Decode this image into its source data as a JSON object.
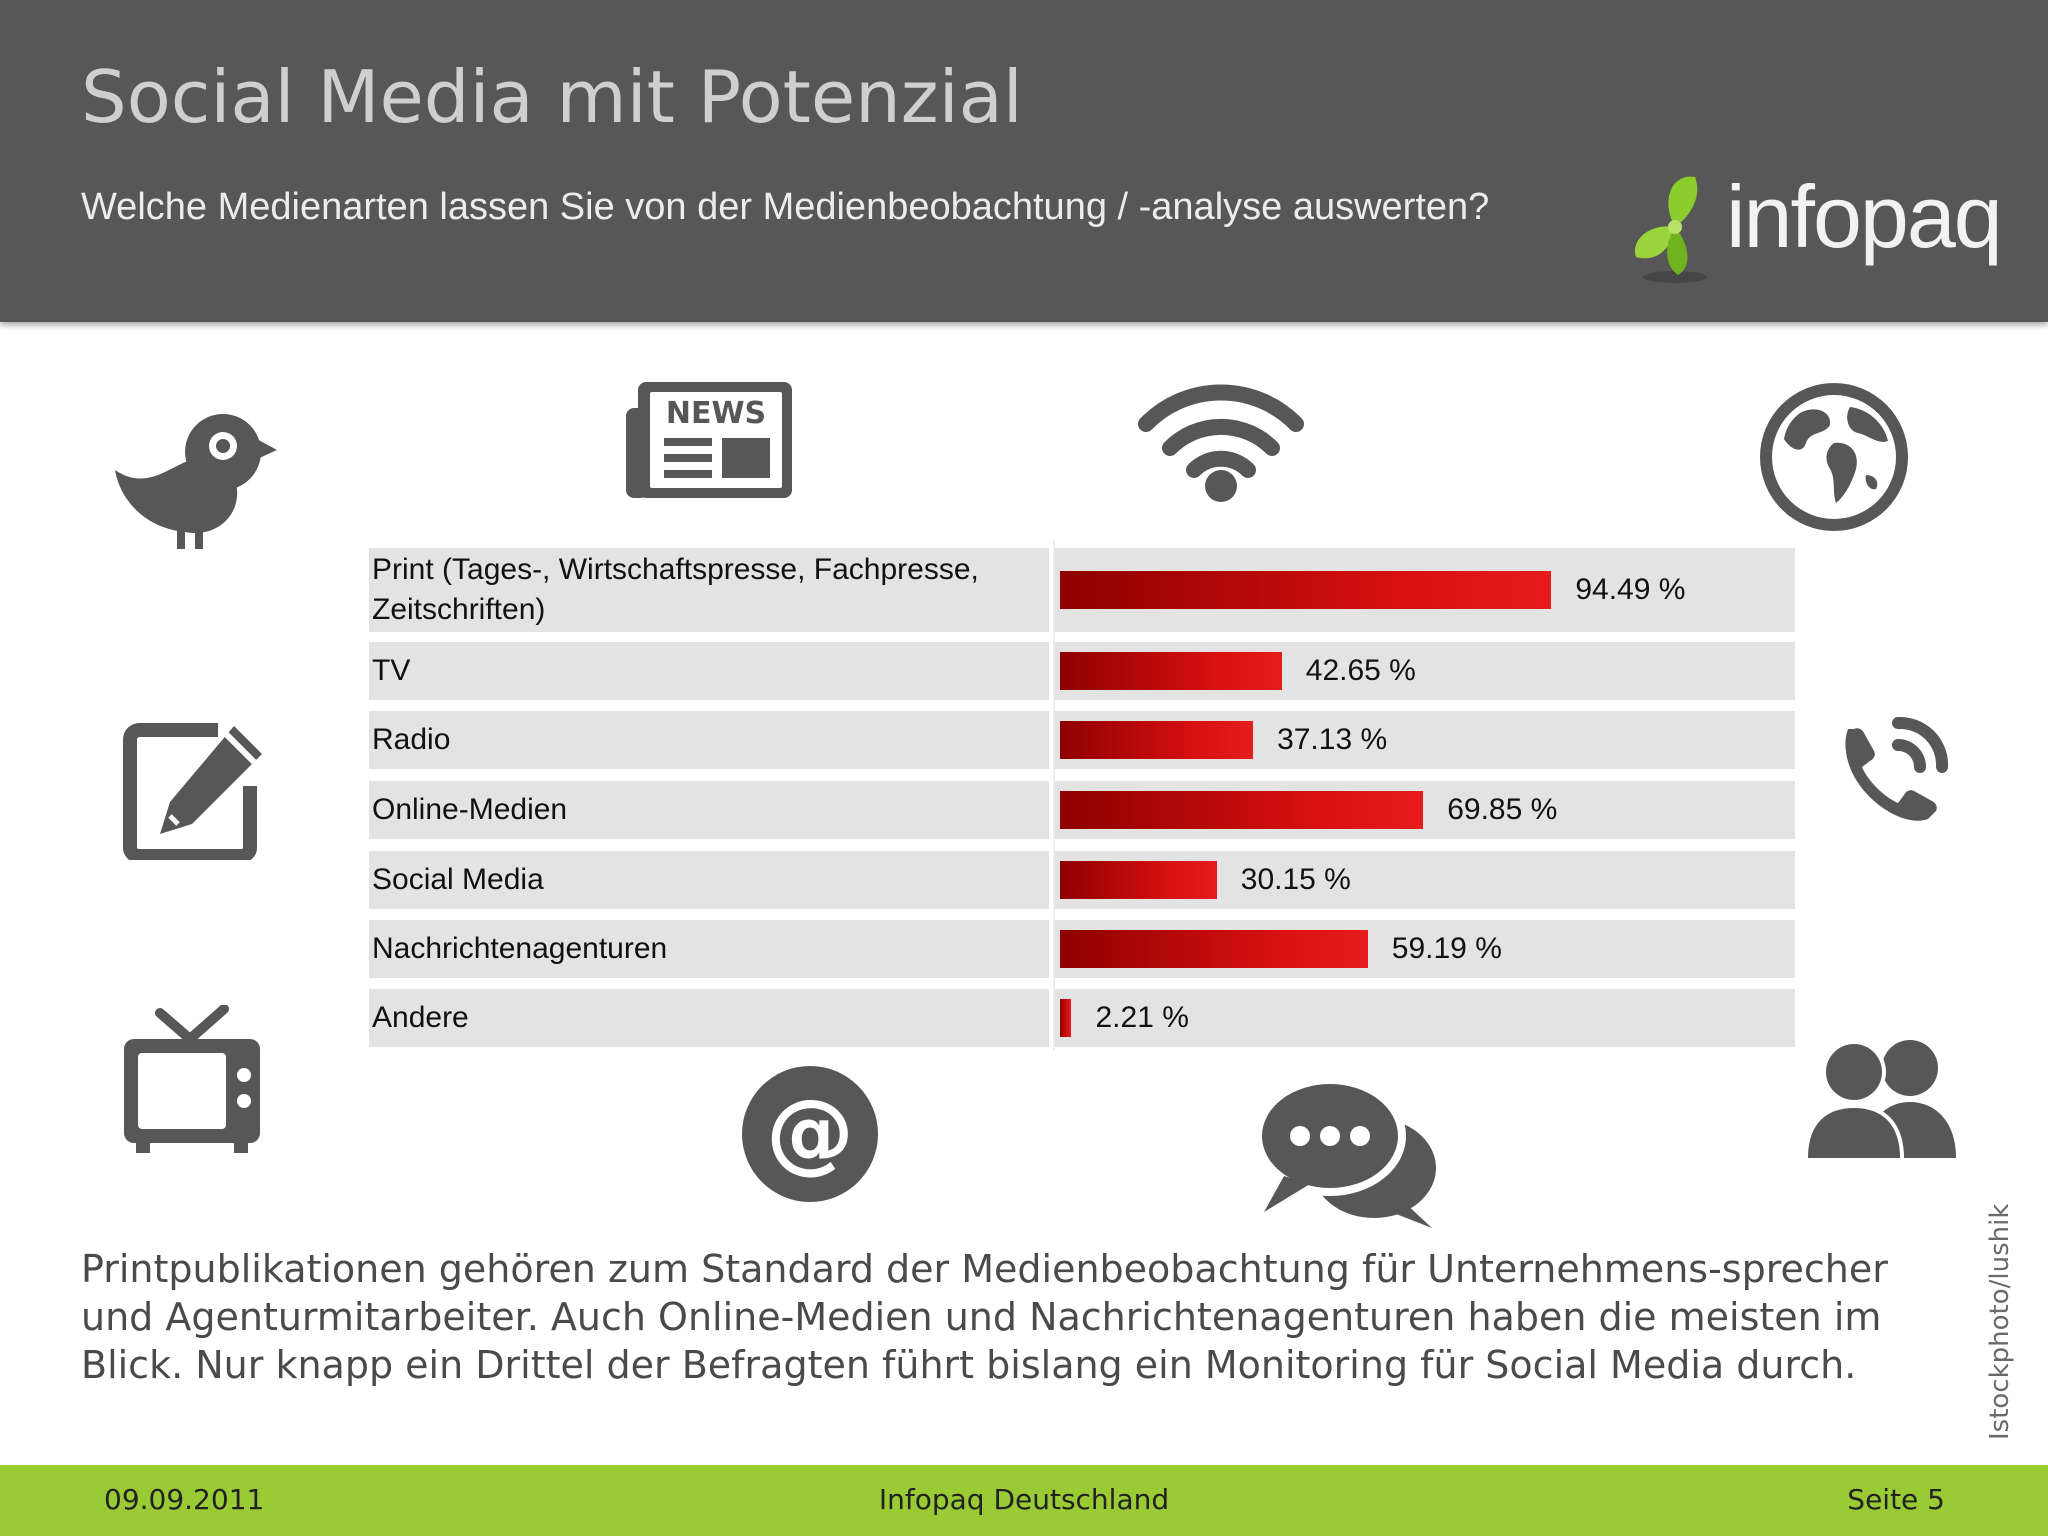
{
  "header": {
    "title": "Social Media mit Potenzial",
    "subtitle": "Welche Medienarten lassen Sie von der Medienbeobachtung / -analyse auswerten?",
    "logo_text": "infopaq"
  },
  "icons": [
    "bird-icon",
    "newspaper-icon",
    "wifi-icon",
    "globe-icon",
    "edit-icon",
    "phone-icon",
    "tv-icon",
    "at-sign-icon",
    "chat-bubbles-icon",
    "people-icon"
  ],
  "chart_data": {
    "type": "bar",
    "orientation": "horizontal",
    "categories": [
      "Print (Tages-, Wirtschaftspresse, Fachpresse, Zeitschriften)",
      "TV",
      "Radio",
      "Online-Medien",
      "Social Media",
      "Nachrichtenagenturen",
      "Andere"
    ],
    "values": [
      94.49,
      42.65,
      37.13,
      69.85,
      30.15,
      59.19,
      2.21
    ],
    "value_labels": [
      "94.49 %",
      "42.65 %",
      "37.13 %",
      "69.85 %",
      "30.15 %",
      "59.19 %",
      "2.21 %"
    ],
    "xlim": [
      0,
      100
    ],
    "bar_color": "#d81010"
  },
  "body_text": "Printpublikationen gehören zum Standard der Medienbeobachtung für Unternehmens-sprecher und Agenturmitarbeiter. Auch Online-Medien und Nachrichtenagenturen haben die meisten im Blick. Nur knapp ein Drittel der Befragten führt bislang ein Monitoring für Social Media durch.",
  "credit": "Istockphoto/lushik",
  "footer": {
    "date": "09.09.2011",
    "company": "Infopaq Deutschland",
    "page": "Seite 5"
  },
  "colors": {
    "header_bg": "#575757",
    "footer_bg": "#9acb35",
    "icon": "#575757",
    "logo_green": "#8ccd2e"
  }
}
